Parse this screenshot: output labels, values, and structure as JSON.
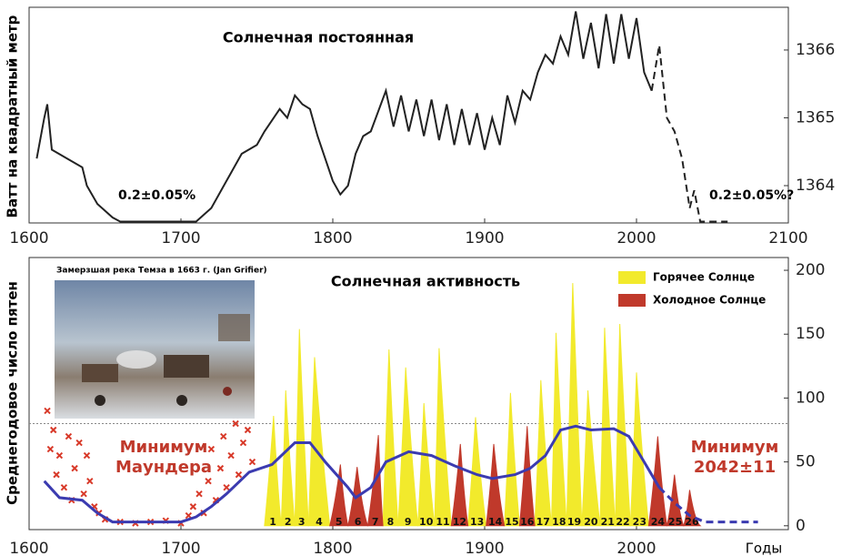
{
  "chart_data": [
    {
      "type": "line",
      "title": "Солнечная постоянная",
      "y_label": "Ватт на квадратный метр",
      "xlim": [
        1600,
        2100
      ],
      "xticks": [
        1600,
        1700,
        1800,
        1900,
        2000,
        2100
      ],
      "ylim": [
        1363.45,
        1366.63
      ],
      "yticks": [
        1364,
        1365,
        1366
      ],
      "annotations": [
        "0.2±0.05%",
        "0.2±0.05%?"
      ],
      "series": [
        {
          "color": "#222222",
          "dash": false,
          "x": [
            1605,
            1610,
            1612,
            1615,
            1625,
            1635,
            1638,
            1645,
            1655,
            1660,
            1710,
            1720,
            1730,
            1740,
            1750,
            1755,
            1765,
            1770,
            1775,
            1780,
            1785,
            1790,
            1800,
            1805,
            1810,
            1815,
            1820,
            1825,
            1835,
            1840,
            1845,
            1850,
            1855,
            1860,
            1865,
            1870,
            1875,
            1880,
            1885,
            1890,
            1895,
            1900,
            1905,
            1910,
            1915,
            1920,
            1925,
            1930,
            1935,
            1940,
            1945,
            1950,
            1955,
            1960,
            1965,
            1970,
            1975,
            1980,
            1985,
            1990,
            1995,
            2000,
            2005,
            2010
          ],
          "values": [
            1364.4,
            1365.0,
            1365.2,
            1364.53,
            1364.4,
            1364.27,
            1364.0,
            1363.73,
            1363.53,
            1363.47,
            1363.47,
            1363.67,
            1364.07,
            1364.47,
            1364.6,
            1364.8,
            1365.13,
            1365.0,
            1365.33,
            1365.2,
            1365.13,
            1364.73,
            1364.07,
            1363.87,
            1364.0,
            1364.47,
            1364.73,
            1364.8,
            1365.4,
            1364.87,
            1365.33,
            1364.8,
            1365.27,
            1364.73,
            1365.27,
            1364.67,
            1365.2,
            1364.6,
            1365.13,
            1364.6,
            1365.07,
            1364.53,
            1365.0,
            1364.6,
            1365.33,
            1364.93,
            1365.4,
            1365.27,
            1365.67,
            1365.93,
            1365.8,
            1366.2,
            1365.93,
            1366.57,
            1365.87,
            1366.4,
            1365.73,
            1366.53,
            1365.8,
            1366.53,
            1365.87,
            1366.47,
            1365.67,
            1365.4
          ]
        },
        {
          "color": "#222222",
          "dash": true,
          "x": [
            2010,
            2015,
            2020,
            2025,
            2030,
            2035,
            2038,
            2042,
            2060
          ],
          "values": [
            1365.4,
            1366.07,
            1365.0,
            1364.8,
            1364.4,
            1363.67,
            1363.93,
            1363.47,
            1363.47
          ]
        }
      ]
    },
    {
      "type": "cycles",
      "title": "Солнечная активность",
      "y_label": "Среднегодовое число пятен",
      "x_label": "Годы",
      "caption": "Замерзшая река Темза в 1663 г. (Jan Grifier)",
      "xlim": [
        1600,
        2100
      ],
      "xticks": [
        1600,
        1700,
        1800,
        1900,
        2000
      ],
      "ylim": [
        -3,
        210
      ],
      "yticks": [
        0,
        50,
        100,
        150,
        200
      ],
      "reference_line": 80,
      "annotations": [
        [
          "Минимум",
          "Маундера"
        ],
        [
          "Минимум",
          "2042±11"
        ]
      ],
      "annotation_color": "#c0392b",
      "series": [
        {
          "name": "Горячее Солнце",
          "color": "#f2ea2c",
          "cycles": [
            {
              "label": "1",
              "start": 1755,
              "peak": 1761,
              "end": 1766,
              "value": 86
            },
            {
              "label": "2",
              "start": 1766,
              "peak": 1769,
              "end": 1775,
              "value": 106
            },
            {
              "label": "3",
              "start": 1775,
              "peak": 1778,
              "end": 1784,
              "value": 154
            },
            {
              "label": "4",
              "start": 1784,
              "peak": 1788,
              "end": 1798,
              "value": 132
            },
            {
              "label": "8",
              "start": 1833,
              "peak": 1837,
              "end": 1843,
              "value": 138
            },
            {
              "label": "9",
              "start": 1843,
              "peak": 1848,
              "end": 1856,
              "value": 124
            },
            {
              "label": "10",
              "start": 1856,
              "peak": 1860,
              "end": 1867,
              "value": 96
            },
            {
              "label": "11",
              "start": 1867,
              "peak": 1870,
              "end": 1878,
              "value": 139
            },
            {
              "label": "13",
              "start": 1889,
              "peak": 1894,
              "end": 1901,
              "value": 85
            },
            {
              "label": "15",
              "start": 1913,
              "peak": 1917,
              "end": 1923,
              "value": 104
            },
            {
              "label": "17",
              "start": 1933,
              "peak": 1937,
              "end": 1944,
              "value": 114
            },
            {
              "label": "18",
              "start": 1944,
              "peak": 1947,
              "end": 1954,
              "value": 151
            },
            {
              "label": "19",
              "start": 1954,
              "peak": 1958,
              "end": 1964,
              "value": 190
            },
            {
              "label": "20",
              "start": 1964,
              "peak": 1968,
              "end": 1976,
              "value": 106
            },
            {
              "label": "21",
              "start": 1976,
              "peak": 1979,
              "end": 1986,
              "value": 155
            },
            {
              "label": "22",
              "start": 1986,
              "peak": 1989,
              "end": 1996,
              "value": 158
            },
            {
              "label": "23",
              "start": 1996,
              "peak": 2000,
              "end": 2008,
              "value": 120
            }
          ]
        },
        {
          "name": "Холодное Солнце",
          "color": "#c0392b",
          "cycles": [
            {
              "label": "5",
              "start": 1798,
              "peak": 1805,
              "end": 1810,
              "value": 48
            },
            {
              "label": "6",
              "start": 1810,
              "peak": 1816,
              "end": 1823,
              "value": 46
            },
            {
              "label": "7",
              "start": 1823,
              "peak": 1830,
              "end": 1833,
              "value": 71
            },
            {
              "label": "12",
              "start": 1878,
              "peak": 1884,
              "end": 1889,
              "value": 64
            },
            {
              "label": "14",
              "start": 1901,
              "peak": 1906,
              "end": 1913,
              "value": 64
            },
            {
              "label": "16",
              "start": 1923,
              "peak": 1928,
              "end": 1933,
              "value": 78
            },
            {
              "label": "24",
              "start": 2008,
              "peak": 2014,
              "end": 2020,
              "value": 70
            },
            {
              "label": "25",
              "start": 2020,
              "peak": 2025,
              "end": 2031,
              "value": 40
            },
            {
              "label": "26",
              "start": 2031,
              "peak": 2035,
              "end": 2042,
              "value": 28
            }
          ]
        }
      ],
      "observations": {
        "color": "#d83a2a",
        "x": [
          1612,
          1614,
          1616,
          1618,
          1620,
          1623,
          1626,
          1628,
          1630,
          1633,
          1636,
          1638,
          1640,
          1643,
          1646,
          1650,
          1660,
          1670,
          1680,
          1690,
          1700,
          1705,
          1708,
          1712,
          1715,
          1718,
          1720,
          1723,
          1726,
          1728,
          1730,
          1733,
          1736,
          1738,
          1741,
          1744,
          1747
        ],
        "values": [
          90,
          60,
          75,
          40,
          55,
          30,
          70,
          20,
          45,
          65,
          25,
          55,
          35,
          15,
          10,
          5,
          3,
          2,
          3,
          4,
          2,
          8,
          15,
          25,
          10,
          35,
          60,
          20,
          45,
          70,
          30,
          55,
          80,
          40,
          65,
          75,
          50
        ]
      },
      "trend": [
        {
          "color": "#3b3bb0",
          "dash": false,
          "x": [
            1610,
            1620,
            1635,
            1645,
            1655,
            1700,
            1710,
            1720,
            1730,
            1745,
            1760,
            1775,
            1785,
            1795,
            1810,
            1815,
            1825,
            1835,
            1850,
            1865,
            1880,
            1895,
            1905,
            1920,
            1930,
            1940,
            1950,
            1960,
            1970,
            1985,
            1995,
            2005,
            2015
          ],
          "values": [
            35,
            22,
            20,
            10,
            3,
            3,
            7,
            15,
            25,
            42,
            48,
            65,
            65,
            50,
            30,
            22,
            30,
            50,
            58,
            55,
            47,
            40,
            37,
            40,
            45,
            55,
            75,
            78,
            75,
            76,
            70,
            50,
            30
          ]
        },
        {
          "color": "#3b3bb0",
          "dash": true,
          "x": [
            2015,
            2025,
            2035,
            2045,
            2080
          ],
          "values": [
            30,
            18,
            8,
            3,
            3
          ]
        }
      ]
    }
  ]
}
